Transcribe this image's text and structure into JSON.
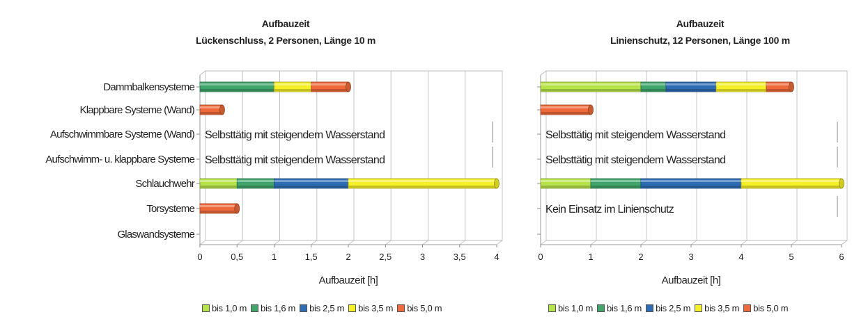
{
  "colors": {
    "bis_1_0": "#b7e34a",
    "bis_1_6": "#3fa56a",
    "bis_2_5": "#2e6cb3",
    "bis_3_5": "#f5f028",
    "bis_5_0": "#ee6a3a"
  },
  "legend": [
    {
      "key": "bis_1_0",
      "label": "bis 1,0 m"
    },
    {
      "key": "bis_1_6",
      "label": "bis 1,6 m"
    },
    {
      "key": "bis_2_5",
      "label": "bis 2,5 m"
    },
    {
      "key": "bis_3_5",
      "label": "bis 3,5 m"
    },
    {
      "key": "bis_5_0",
      "label": "bis 5,0 m"
    }
  ],
  "chart_data": [
    {
      "type": "bar",
      "orientation": "horizontal-stacked",
      "title": "Aufbauzeit",
      "subtitle": "Lückenschluss, 2 Personen, Länge 10 m",
      "xlabel": "Aufbauzeit  [h]",
      "xlim": [
        0,
        4
      ],
      "xticks": [
        "0",
        "0,5",
        "1",
        "1,5",
        "2",
        "2,5",
        "3",
        "3,5",
        "4"
      ],
      "grid": true,
      "legend_position": "bottom",
      "categories": [
        "Dammbalkensysteme",
        "Klappbare Systeme (Wand)",
        "Aufschwimmbare Systeme (Wand)",
        "Aufschwimm- u. klappbare Systeme",
        "Schlauchwehr",
        "Torsysteme",
        "Glaswandsysteme"
      ],
      "bars": [
        {
          "category": "Dammbalkensysteme",
          "segments": [
            {
              "series": "bis_1_6",
              "from": 0,
              "to": 1.0
            },
            {
              "series": "bis_3_5",
              "from": 1.0,
              "to": 1.5
            },
            {
              "series": "bis_5_0",
              "from": 1.5,
              "to": 2.0
            }
          ]
        },
        {
          "category": "Klappbare Systeme (Wand)",
          "segments": [
            {
              "series": "bis_5_0",
              "from": 0,
              "to": 0.3
            }
          ]
        },
        {
          "category": "Schlauchwehr",
          "segments": [
            {
              "series": "bis_1_0",
              "from": 0,
              "to": 0.5
            },
            {
              "series": "bis_1_6",
              "from": 0.5,
              "to": 1.0
            },
            {
              "series": "bis_2_5",
              "from": 1.0,
              "to": 2.0
            },
            {
              "series": "bis_3_5",
              "from": 2.0,
              "to": 4.0
            }
          ]
        },
        {
          "category": "Torsysteme",
          "segments": [
            {
              "series": "bis_5_0",
              "from": 0,
              "to": 0.5
            }
          ]
        }
      ],
      "notes": [
        {
          "category": "Aufschwimmbare Systeme (Wand)",
          "text": "Selbsttätig mit steigendem Wasserstand"
        },
        {
          "category": "Aufschwimm- u. klappbare Systeme",
          "text": "Selbsttätig mit steigendem Wasserstand"
        }
      ]
    },
    {
      "type": "bar",
      "orientation": "horizontal-stacked",
      "title": "Aufbauzeit",
      "subtitle": "Linienschutz, 12 Personen, Länge 100 m",
      "xlabel": "Aufbauzeit  [h]",
      "xlim": [
        0,
        6
      ],
      "xticks": [
        "0",
        "1",
        "2",
        "3",
        "4",
        "5",
        "6"
      ],
      "grid": true,
      "legend_position": "bottom",
      "categories": [
        "Dammbalkensysteme",
        "Klappbare Systeme (Wand)",
        "Aufschwimmbare Systeme (Wand)",
        "Aufschwimm- u. klappbare Systeme",
        "Schlauchwehr",
        "Torsysteme",
        "Glaswandsysteme"
      ],
      "bars": [
        {
          "category": "Dammbalkensysteme",
          "segments": [
            {
              "series": "bis_1_0",
              "from": 0,
              "to": 2.0
            },
            {
              "series": "bis_1_6",
              "from": 2.0,
              "to": 2.5
            },
            {
              "series": "bis_2_5",
              "from": 2.5,
              "to": 3.5
            },
            {
              "series": "bis_3_5",
              "from": 3.5,
              "to": 4.5
            },
            {
              "series": "bis_5_0",
              "from": 4.5,
              "to": 5.0
            }
          ]
        },
        {
          "category": "Klappbare Systeme (Wand)",
          "segments": [
            {
              "series": "bis_5_0",
              "from": 0,
              "to": 1.0
            }
          ]
        },
        {
          "category": "Schlauchwehr",
          "segments": [
            {
              "series": "bis_1_0",
              "from": 0,
              "to": 1.0
            },
            {
              "series": "bis_1_6",
              "from": 1.0,
              "to": 2.0
            },
            {
              "series": "bis_2_5",
              "from": 2.0,
              "to": 4.0
            },
            {
              "series": "bis_3_5",
              "from": 4.0,
              "to": 6.0
            }
          ]
        }
      ],
      "notes": [
        {
          "category": "Aufschwimmbare Systeme (Wand)",
          "text": "Selbsttätig mit steigendem Wasserstand"
        },
        {
          "category": "Aufschwimm- u. klappbare Systeme",
          "text": "Selbsttätig mit steigendem Wasserstand"
        },
        {
          "category": "Torsysteme",
          "text": "Kein Einsatz im Linienschutz"
        }
      ]
    }
  ]
}
